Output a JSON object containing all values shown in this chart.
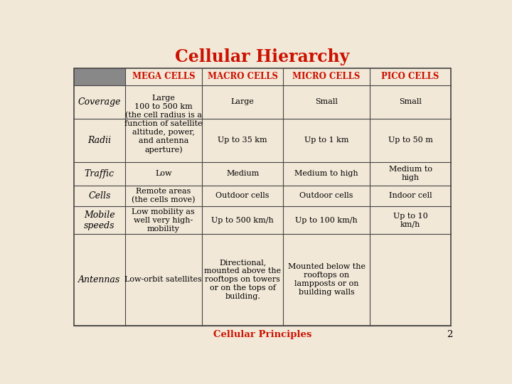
{
  "title": "Cellular Hierarchy",
  "title_color": "#cc1100",
  "title_fontsize": 17,
  "footer_text": "Cellular Principles",
  "footer_color": "#cc1100",
  "footer_fontsize": 9.5,
  "page_number": "2",
  "background_color": "#f2e8d8",
  "header_bg_color": "#888888",
  "table_border_color": "#444444",
  "col_headers": [
    "MEGA CELLS",
    "MACRO CELLS",
    "MICRO CELLS",
    "PICO CELLS"
  ],
  "col_header_color": "#cc1100",
  "row_labels": [
    "Coverage",
    "Radii",
    "Traffic",
    "Cells",
    "Mobile\nspeeds",
    "Antennas"
  ],
  "mega_cell_text": "Large\n100 to 500 km\n(the cell radius is a\nfunction of satellite\naltitude, power,\nand antenna\naperture)",
  "cells": [
    [
      "Large\n100 to 500 km\n(the cell radius is a\nfunction of satellite\naltitude, power,\nand antenna\naperture)",
      "Large",
      "Small",
      "Small"
    ],
    [
      "",
      "Up to 35 km",
      "Up to 1 km",
      "Up to 50 m"
    ],
    [
      "Low",
      "Medium",
      "Medium to high",
      "Medium to\nhigh"
    ],
    [
      "Remote areas\n(the cells move)",
      "Outdoor cells",
      "Outdoor cells",
      "Indoor cell"
    ],
    [
      "Low mobility as\nwell very high-\nmobility",
      "Up to 500 km/h",
      "Up to 100 km/h",
      "Up to 10\nkm/h"
    ],
    [
      "Low-orbit satellites",
      "Directional,\nmounted above the\nrooftops on towers\nor on the tops of\nbuilding.",
      "Mounted below the\nrooftops on\nlampposts or on\nbuilding walls",
      ""
    ]
  ],
  "cell_fontsize": 8,
  "header_fontsize": 8.5,
  "row_label_fontsize": 9
}
